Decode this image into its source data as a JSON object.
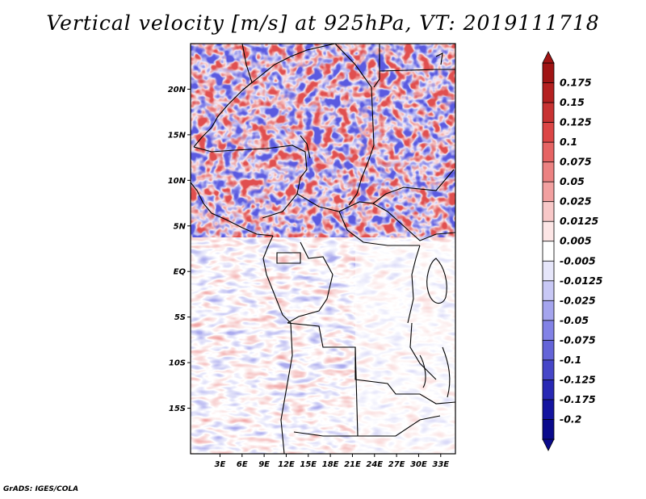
{
  "title": "Vertical velocity [m/s] at 925hPa, VT: 2019111718",
  "credit": "GrADS: IGES/COLA",
  "map": {
    "lon_range": [
      -1,
      35
    ],
    "lat_range": [
      -20,
      25
    ],
    "lat_ticks": [
      {
        "value": 20,
        "label": "20N"
      },
      {
        "value": 15,
        "label": "15N"
      },
      {
        "value": 10,
        "label": "10N"
      },
      {
        "value": 5,
        "label": "5N"
      },
      {
        "value": 0,
        "label": "EQ"
      },
      {
        "value": -5,
        "label": "5S"
      },
      {
        "value": -10,
        "label": "10S"
      },
      {
        "value": -15,
        "label": "15S"
      }
    ],
    "lon_ticks": [
      {
        "value": 3,
        "label": "3E"
      },
      {
        "value": 6,
        "label": "6E"
      },
      {
        "value": 9,
        "label": "9E"
      },
      {
        "value": 12,
        "label": "12E"
      },
      {
        "value": 15,
        "label": "15E"
      },
      {
        "value": 18,
        "label": "18E"
      },
      {
        "value": 21,
        "label": "21E"
      },
      {
        "value": 24,
        "label": "24E"
      },
      {
        "value": 27,
        "label": "27E"
      },
      {
        "value": 30,
        "label": "30E"
      },
      {
        "value": 33,
        "label": "33E"
      }
    ]
  },
  "colorbar": {
    "labels": [
      "0.175",
      "0.15",
      "0.125",
      "0.1",
      "0.075",
      "0.05",
      "0.025",
      "0.0125",
      "0.005",
      "-0.005",
      "-0.0125",
      "-0.025",
      "-0.05",
      "-0.075",
      "-0.1",
      "-0.125",
      "-0.175",
      "-0.2"
    ],
    "colors": [
      "#a01414",
      "#b42020",
      "#c83232",
      "#dc4646",
      "#e66464",
      "#ec8282",
      "#f2a0a0",
      "#f8c8c8",
      "#fde6e6",
      "#ffffff",
      "#e6e6fa",
      "#c8c8f5",
      "#a5a5ee",
      "#8282e6",
      "#6464d8",
      "#4646c8",
      "#2828b4",
      "#1414a0",
      "#0a0a8c"
    ]
  }
}
